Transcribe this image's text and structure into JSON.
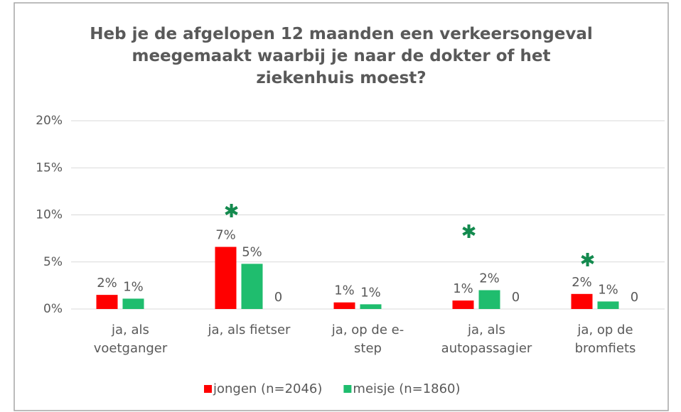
{
  "chart_data": {
    "type": "bar",
    "title": "Heb je de afgelopen 12 maanden een verkeersongeval meegemaakt waarbij je naar de dokter of het ziekenhuis moest?",
    "categories": [
      "ja, als voetganger",
      "ja, als fietser",
      "ja, op de e-step",
      "ja, als autopassagier",
      "ja, op de bromfiets"
    ],
    "series": [
      {
        "name": "jongen (n=2046)",
        "color": "#ff0000",
        "values": [
          1.5,
          6.6,
          0.7,
          0.9,
          1.6
        ],
        "value_labels": [
          "2%",
          "7%",
          "1%",
          "1%",
          "2%"
        ]
      },
      {
        "name": "meisje (n=1860)",
        "color": "#1fbd6e",
        "values": [
          1.1,
          4.8,
          0.5,
          2.0,
          0.8
        ],
        "value_labels": [
          "1%",
          "5%",
          "1%",
          "2%",
          "1%"
        ]
      },
      {
        "values": [
          null,
          0,
          null,
          0,
          0
        ]
      }
    ],
    "annotations": [
      {
        "text": "✱",
        "category": 1,
        "series": 0,
        "y": 10.3
      },
      {
        "text": "✱",
        "category": 3,
        "series": 0,
        "y": 8.1
      },
      {
        "text": "✱",
        "category": 4,
        "series": 0,
        "y": 5.1
      }
    ],
    "ylim": [
      0,
      20
    ],
    "yticks": [
      {
        "value": 0,
        "label": "0%"
      },
      {
        "value": 5,
        "label": "5%"
      },
      {
        "value": 10,
        "label": "10%"
      },
      {
        "value": 15,
        "label": "15%"
      },
      {
        "value": 20,
        "label": "20%"
      }
    ],
    "grid": true,
    "legend": "bottom"
  }
}
